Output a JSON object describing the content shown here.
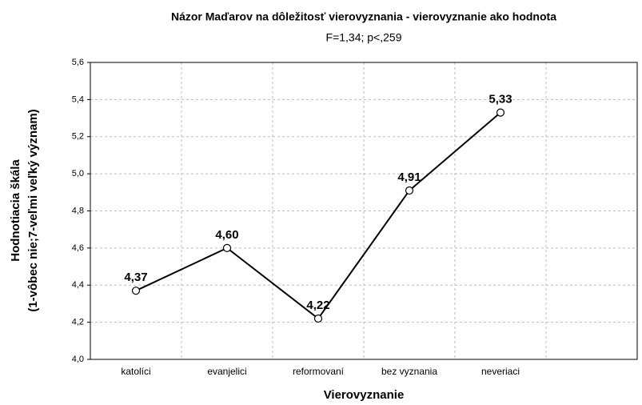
{
  "chart_data": {
    "type": "line",
    "title": "Názor Maďarov na dôležitosť vierovyznania - vierovyznanie ako hodnota",
    "subtitle": "F=1,34; p<,259",
    "x_label": "Vierovyznanie",
    "y_label": [
      "Hodnotiacia škála",
      "(1-vôbec nie;7-veľmi veľký význam)"
    ],
    "categories": [
      "katolíci",
      "evanjelici",
      "reformovaní",
      "bez vyznania",
      "neveriaci",
      null
    ],
    "values": [
      4.37,
      4.6,
      4.22,
      4.91,
      5.33,
      null
    ],
    "value_labels": [
      "4,37",
      "4,60",
      "4,22",
      "4,91",
      "5,33",
      null
    ],
    "color": "#000000",
    "ylim": [
      4.0,
      5.6
    ],
    "yticks": [
      {
        "value": 4.0,
        "label": "4,0"
      },
      {
        "value": 4.2,
        "label": "4,2"
      },
      {
        "value": 4.4,
        "label": "4,4"
      },
      {
        "value": 4.6,
        "label": "4,6"
      },
      {
        "value": 4.8,
        "label": "4,8"
      },
      {
        "value": 5.0,
        "label": "5,0"
      },
      {
        "value": 5.2,
        "label": "5,2"
      },
      {
        "value": 5.4,
        "label": "5,4"
      },
      {
        "value": 5.6,
        "label": "5,6"
      }
    ],
    "grid": true
  }
}
